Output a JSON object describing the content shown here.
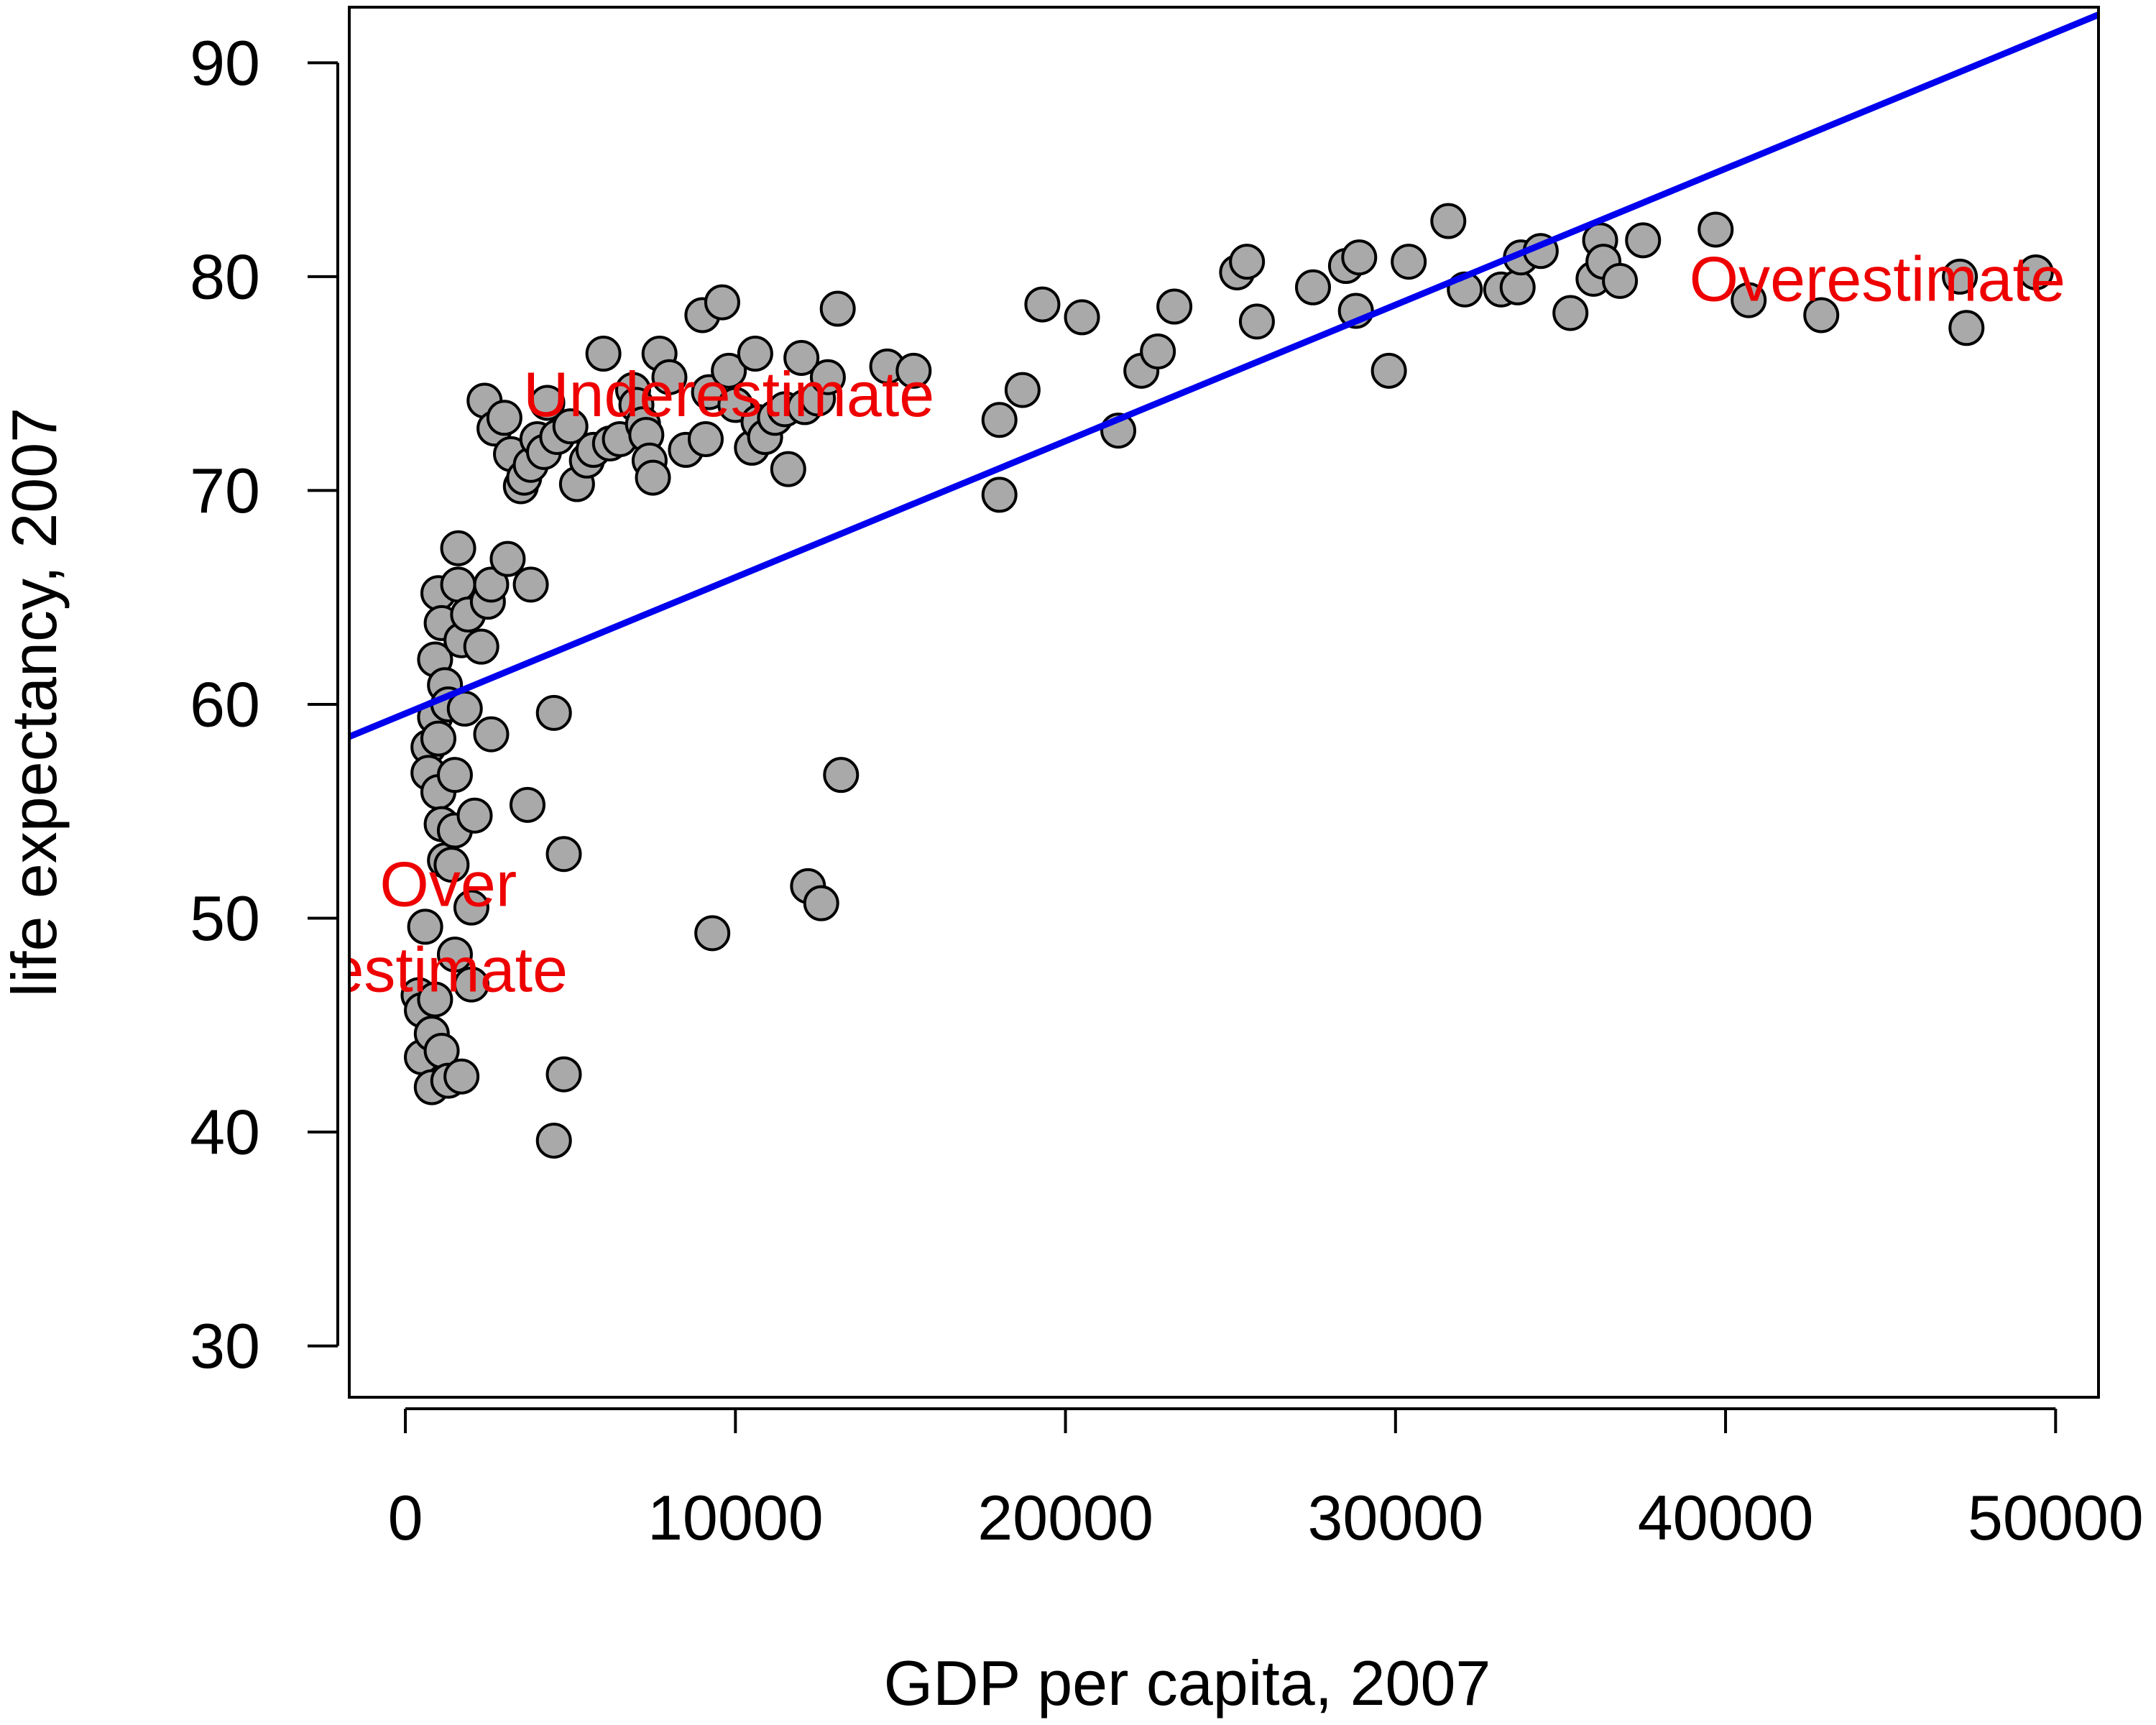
{
  "chart_data": {
    "type": "scatter",
    "title": "",
    "xlabel": "GDP per capita, 2007",
    "ylabel": "life expectancy, 2007",
    "xlim": [
      -1700,
      51300
    ],
    "ylim": [
      27.6,
      92.6
    ],
    "x_ticks": [
      0,
      10000,
      20000,
      30000,
      40000,
      50000
    ],
    "x_tick_labels": [
      "0",
      "10000",
      "20000",
      "30000",
      "40000",
      "50000"
    ],
    "y_ticks": [
      30,
      40,
      50,
      60,
      70,
      80,
      90
    ],
    "y_tick_labels": [
      "30",
      "40",
      "50",
      "60",
      "70",
      "80",
      "90"
    ],
    "grid": false,
    "point_color": "#a9a9a9",
    "point_edge_color": "#000000",
    "fit_line": {
      "color": "#0000ee",
      "intercept": 59.57,
      "slope": 0.000637
    },
    "annotations": [
      {
        "text": "Underestimate",
        "x": 9800,
        "y": 74.5,
        "color": "#ee0000"
      },
      {
        "text": "Overestimate",
        "x": 44600,
        "y": 79.9,
        "color": "#ee0000"
      },
      {
        "text": "Over",
        "x": 1300,
        "y": 51.6,
        "color": "#ee0000"
      },
      {
        "text": "estimate",
        "x": 1300,
        "y": 47.6,
        "color": "#ee0000"
      }
    ],
    "series": [
      {
        "values": [
          [
            400,
            46.4
          ],
          [
            500,
            45.7
          ],
          [
            500,
            43.5
          ],
          [
            600,
            49.6
          ],
          [
            700,
            58.0
          ],
          [
            700,
            56.8
          ],
          [
            800,
            44.6
          ],
          [
            800,
            42.1
          ],
          [
            900,
            46.2
          ],
          [
            900,
            59.4
          ],
          [
            900,
            62.1
          ],
          [
            1000,
            58.4
          ],
          [
            1000,
            65.2
          ],
          [
            1000,
            55.9
          ],
          [
            1100,
            63.8
          ],
          [
            1100,
            43.8
          ],
          [
            1100,
            54.4
          ],
          [
            1200,
            52.7
          ],
          [
            1200,
            60.9
          ],
          [
            1300,
            42.4
          ],
          [
            1300,
            60.0
          ],
          [
            1400,
            52.5
          ],
          [
            1500,
            54.1
          ],
          [
            1500,
            56.7
          ],
          [
            1500,
            48.3
          ],
          [
            1600,
            65.6
          ],
          [
            1600,
            67.3
          ],
          [
            1700,
            63.0
          ],
          [
            1700,
            42.6
          ],
          [
            1800,
            59.8
          ],
          [
            1900,
            64.2
          ],
          [
            2000,
            50.5
          ],
          [
            2000,
            46.9
          ],
          [
            2100,
            54.8
          ],
          [
            2300,
            62.7
          ],
          [
            2400,
            74.2
          ],
          [
            2500,
            64.8
          ],
          [
            2600,
            58.6
          ],
          [
            2600,
            65.6
          ],
          [
            2700,
            72.9
          ],
          [
            3000,
            73.4
          ],
          [
            3100,
            66.8
          ],
          [
            3200,
            71.7
          ],
          [
            3500,
            70.2
          ],
          [
            3600,
            70.6
          ],
          [
            3700,
            55.3
          ],
          [
            3800,
            65.6
          ],
          [
            3800,
            71.2
          ],
          [
            4000,
            72.4
          ],
          [
            4200,
            71.8
          ],
          [
            4300,
            74.1
          ],
          [
            4500,
            39.6
          ],
          [
            4500,
            59.6
          ],
          [
            4600,
            72.5
          ],
          [
            4800,
            42.7
          ],
          [
            4800,
            53.0
          ],
          [
            5000,
            73.0
          ],
          [
            5200,
            70.3
          ],
          [
            5500,
            71.4
          ],
          [
            5700,
            71.9
          ],
          [
            6000,
            76.4
          ],
          [
            6200,
            72.2
          ],
          [
            6500,
            72.4
          ],
          [
            6900,
            74.7
          ],
          [
            7000,
            74.0
          ],
          [
            7200,
            73.1
          ],
          [
            7300,
            72.6
          ],
          [
            7400,
            71.4
          ],
          [
            7500,
            70.6
          ],
          [
            7700,
            76.4
          ],
          [
            8000,
            75.3
          ],
          [
            8500,
            71.9
          ],
          [
            9000,
            78.2
          ],
          [
            9100,
            72.4
          ],
          [
            9200,
            74.6
          ],
          [
            9300,
            49.3
          ],
          [
            9600,
            78.8
          ],
          [
            9800,
            75.6
          ],
          [
            10000,
            74.0
          ],
          [
            10500,
            72.0
          ],
          [
            10600,
            76.4
          ],
          [
            10700,
            73.2
          ],
          [
            10900,
            72.5
          ],
          [
            11200,
            73.4
          ],
          [
            11500,
            73.8
          ],
          [
            11600,
            71.0
          ],
          [
            12000,
            76.2
          ],
          [
            12100,
            73.9
          ],
          [
            12200,
            51.5
          ],
          [
            12500,
            74.3
          ],
          [
            12600,
            50.7
          ],
          [
            12800,
            75.3
          ],
          [
            13100,
            78.5
          ],
          [
            13200,
            56.7
          ],
          [
            14600,
            75.8
          ],
          [
            15400,
            75.6
          ],
          [
            18000,
            73.3
          ],
          [
            18000,
            69.8
          ],
          [
            18700,
            74.7
          ],
          [
            19300,
            78.7
          ],
          [
            20500,
            78.1
          ],
          [
            21600,
            72.8
          ],
          [
            22300,
            75.6
          ],
          [
            22800,
            76.5
          ],
          [
            23300,
            78.6
          ],
          [
            25200,
            80.2
          ],
          [
            25500,
            80.7
          ],
          [
            25800,
            77.9
          ],
          [
            27500,
            79.5
          ],
          [
            28500,
            80.5
          ],
          [
            28800,
            78.4
          ],
          [
            28900,
            80.9
          ],
          [
            29800,
            75.6
          ],
          [
            30400,
            80.7
          ],
          [
            31600,
            82.6
          ],
          [
            32100,
            79.4
          ],
          [
            33200,
            79.4
          ],
          [
            33700,
            79.5
          ],
          [
            33800,
            80.9
          ],
          [
            34400,
            81.2
          ],
          [
            35300,
            78.3
          ],
          [
            36000,
            79.9
          ],
          [
            36200,
            81.7
          ],
          [
            36300,
            80.7
          ],
          [
            36800,
            79.8
          ],
          [
            37500,
            81.7
          ],
          [
            39700,
            82.2
          ],
          [
            40700,
            78.9
          ],
          [
            42900,
            78.2
          ],
          [
            47100,
            80.0
          ],
          [
            47300,
            77.6
          ],
          [
            49400,
            80.2
          ]
        ]
      }
    ]
  }
}
